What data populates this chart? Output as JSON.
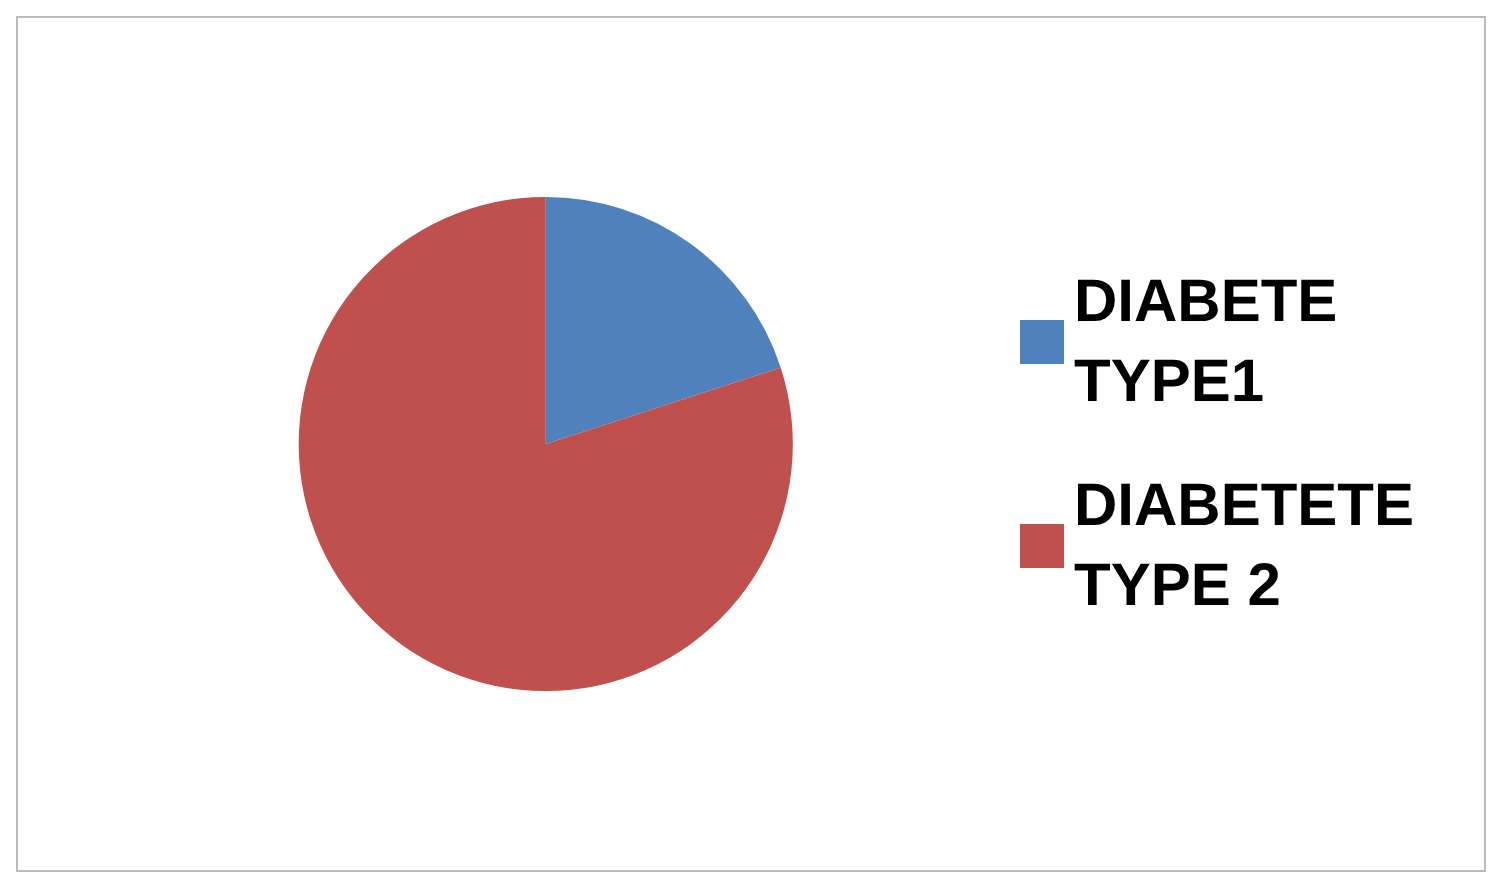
{
  "chart_data": {
    "type": "pie",
    "categories": [
      "DIABETE TYPE1",
      "DIABETETE TYPE 2"
    ],
    "values": [
      20,
      80
    ],
    "colors": [
      "#4f81bd",
      "#c0504d"
    ],
    "legend": "right"
  }
}
